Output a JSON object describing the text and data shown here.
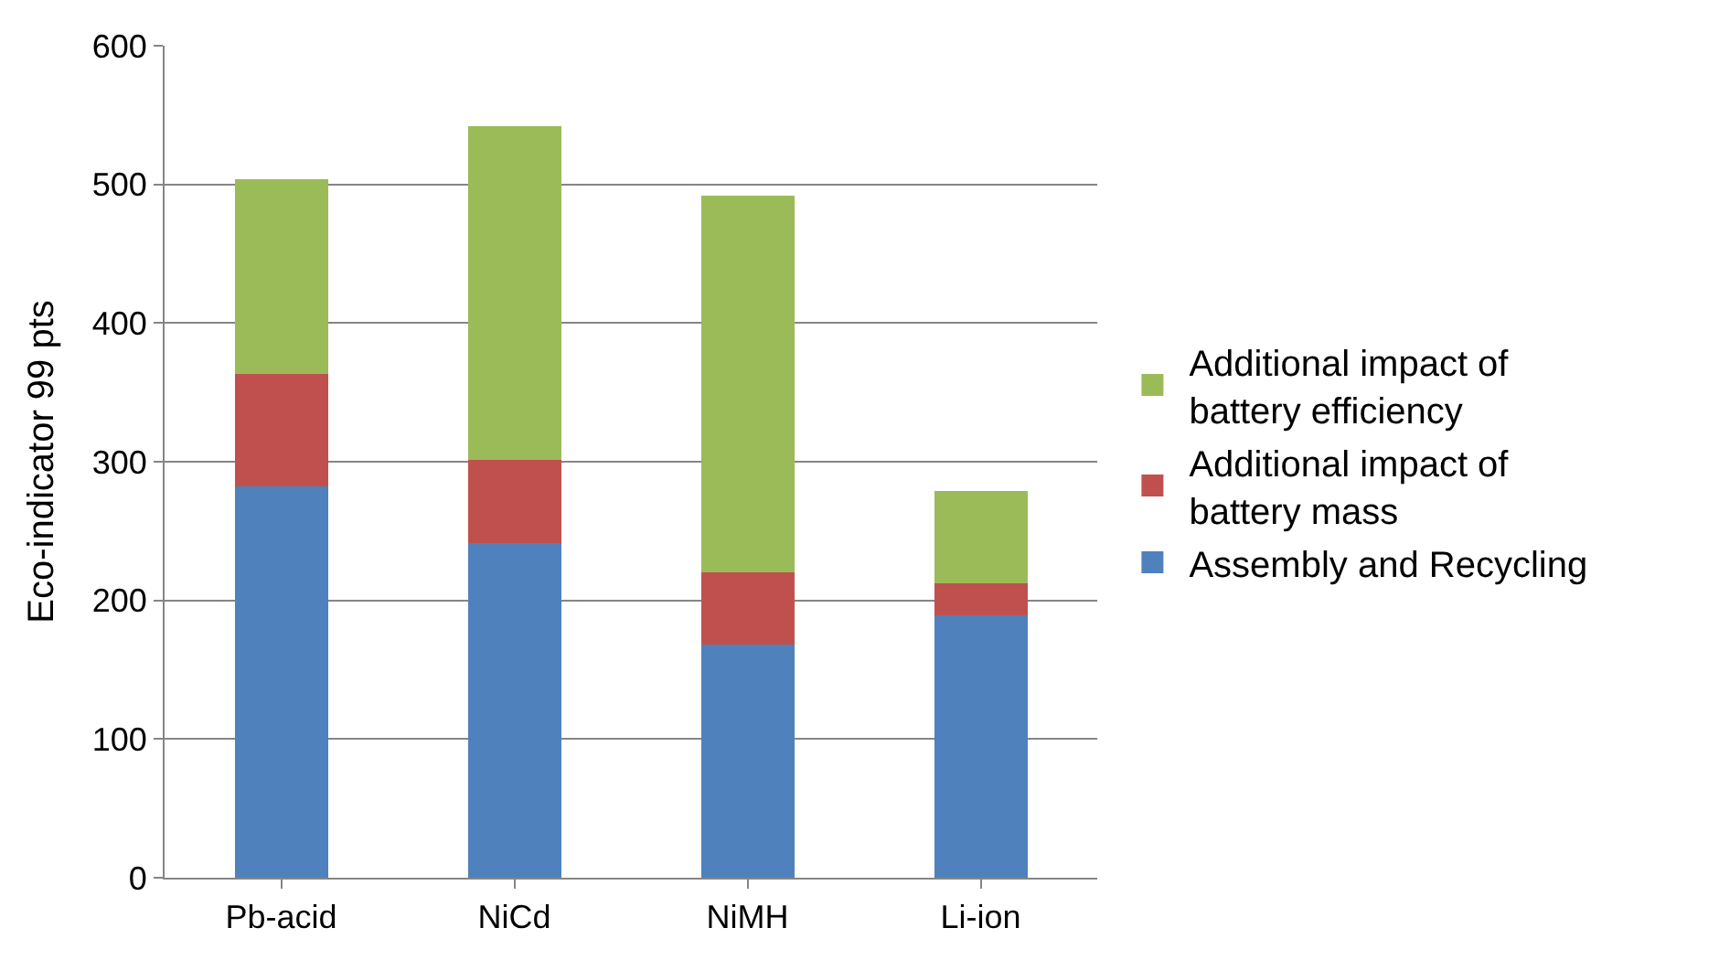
{
  "chart_data": {
    "type": "bar",
    "stacked": true,
    "ylabel": "Eco-indicator 99 pts",
    "categories": [
      "Pb-acid",
      "NiCd",
      "NiMH",
      "Li-ion"
    ],
    "series": [
      {
        "name": "Assembly and Recycling",
        "color": "#4f81bd",
        "values": [
          282,
          241,
          168,
          189
        ]
      },
      {
        "name": "Additional impact of battery mass",
        "color": "#c0504d",
        "values": [
          81,
          60,
          52,
          23
        ]
      },
      {
        "name": "Additional impact of battery efficiency",
        "color": "#9bbb59",
        "values": [
          141,
          241,
          272,
          67
        ]
      }
    ],
    "ylim": [
      0,
      600
    ],
    "yticks": [
      0,
      100,
      200,
      300,
      400,
      500,
      600
    ],
    "grid": "y",
    "legend": "right"
  }
}
